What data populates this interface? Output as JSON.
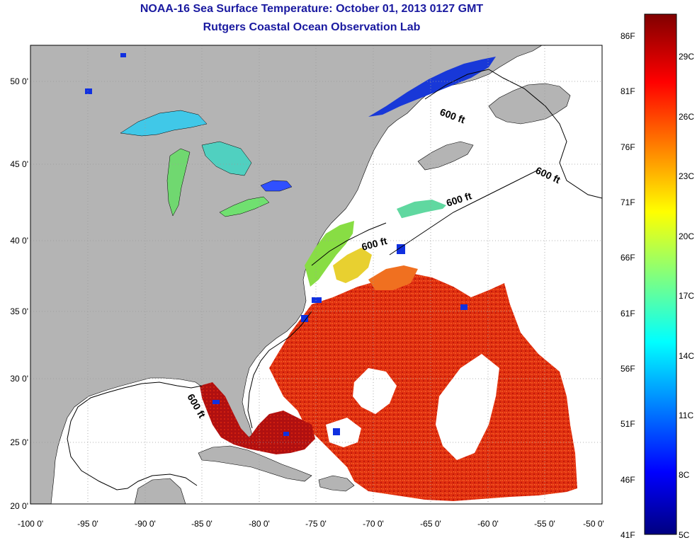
{
  "title": {
    "line1": "NOAA-16 Sea Surface Temperature:  October 01, 2013 0127 GMT",
    "line2": "Rutgers Coastal Ocean Observation Lab"
  },
  "map": {
    "lat_range": [
      20,
      52.5
    ],
    "lon_range": [
      -100,
      -50
    ],
    "y_ticks": [
      "20 0'",
      "25 0'",
      "30 0'",
      "35 0'",
      "40 0'",
      "45 0'",
      "50 0'"
    ],
    "x_ticks": [
      "-100 0'",
      "-95 0'",
      "-90 0'",
      "-85 0'",
      "-80 0'",
      "-75 0'",
      "-70 0'",
      "-65 0'",
      "-60 0'",
      "-55 0'",
      "-50 0'"
    ],
    "contour_labels": [
      "600 ft",
      "600 ft",
      "600 ft",
      "600 ft",
      "600 ft"
    ],
    "colors": {
      "land": "#b4b4b4",
      "clouds": "#ffffff",
      "grid": "#999999"
    }
  },
  "colorbar": {
    "fahrenheit": [
      "86F",
      "81F",
      "76F",
      "71F",
      "66F",
      "61F",
      "56F",
      "51F",
      "46F",
      "41F"
    ],
    "celsius": [
      "29C",
      "26C",
      "23C",
      "20C",
      "17C",
      "14C",
      "11C",
      "8C",
      "5C"
    ],
    "colors": [
      "#000080",
      "#0000ff",
      "#00ffff",
      "#ffff00",
      "#ff0000",
      "#800000"
    ]
  }
}
